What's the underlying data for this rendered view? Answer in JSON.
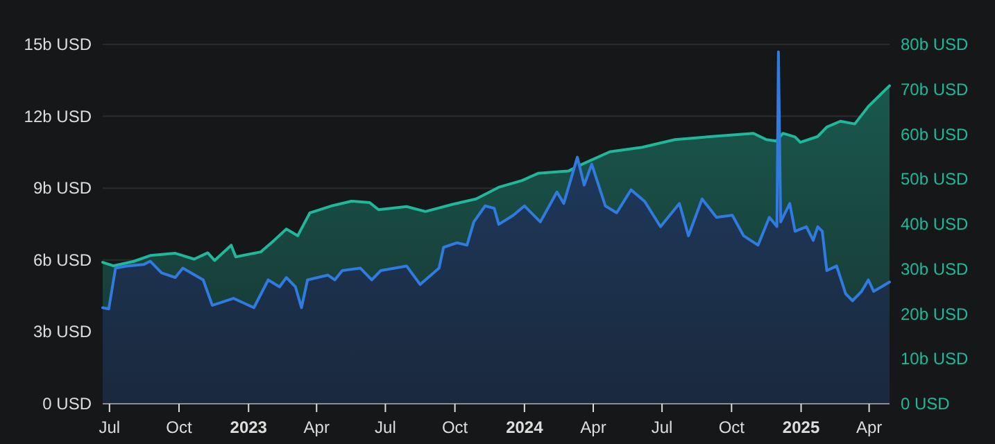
{
  "chart_data": {
    "type": "area",
    "xlim": [
      "2022-06-22",
      "2025-04-28"
    ],
    "xticks": [
      {
        "value": "2022-07-01",
        "label": "Jul"
      },
      {
        "value": "2022-10-01",
        "label": "Oct"
      },
      {
        "value": "2023-01-01",
        "label": "2023"
      },
      {
        "value": "2023-04-01",
        "label": "Apr"
      },
      {
        "value": "2023-07-01",
        "label": "Jul"
      },
      {
        "value": "2023-10-01",
        "label": "Oct"
      },
      {
        "value": "2024-01-01",
        "label": "2024"
      },
      {
        "value": "2024-04-01",
        "label": "Apr"
      },
      {
        "value": "2024-07-01",
        "label": "Jul"
      },
      {
        "value": "2024-10-01",
        "label": "Oct"
      },
      {
        "value": "2025-01-01",
        "label": "2025"
      },
      {
        "value": "2025-04-01",
        "label": "Apr"
      }
    ],
    "ylim": [
      0,
      15
    ],
    "yticks": [
      {
        "value": 0,
        "label": "0 USD"
      },
      {
        "value": 3,
        "label": "3b USD"
      },
      {
        "value": 6,
        "label": "6b USD"
      },
      {
        "value": 9,
        "label": "9b USD"
      },
      {
        "value": 12,
        "label": "12b USD"
      },
      {
        "value": 15,
        "label": "15b USD"
      }
    ],
    "y2lim": [
      0,
      80
    ],
    "y2ticks": [
      {
        "value": 0,
        "label": "0 USD"
      },
      {
        "value": 10,
        "label": "10b USD"
      },
      {
        "value": 20,
        "label": "20b USD"
      },
      {
        "value": 30,
        "label": "30b USD"
      },
      {
        "value": 40,
        "label": "40b USD"
      },
      {
        "value": 50,
        "label": "50b USD"
      },
      {
        "value": 60,
        "label": "60b USD"
      },
      {
        "value": 70,
        "label": "70b USD"
      },
      {
        "value": 80,
        "label": "80b USD"
      }
    ],
    "grid": "y",
    "series": [
      {
        "color": "#1fb89a",
        "axis": "y2",
        "x": [
          "2022-06-22",
          "2022-07-06",
          "2022-08-02",
          "2022-08-24",
          "2022-09-26",
          "2022-10-21",
          "2022-11-08",
          "2022-11-17",
          "2022-12-09",
          "2022-12-15",
          "2023-01-17",
          "2023-02-02",
          "2023-02-20",
          "2023-03-07",
          "2023-03-23",
          "2023-04-22",
          "2023-05-17",
          "2023-06-10",
          "2023-06-22",
          "2023-07-29",
          "2023-08-23",
          "2023-09-28",
          "2023-10-29",
          "2023-11-28",
          "2023-12-29",
          "2024-01-19",
          "2024-02-28",
          "2024-03-17",
          "2024-04-23",
          "2024-06-05",
          "2024-07-18",
          "2024-09-05",
          "2024-10-30",
          "2024-11-16",
          "2024-11-29",
          "2024-12-08",
          "2024-12-24",
          "2024-12-31",
          "2025-01-23",
          "2025-02-04",
          "2025-02-22",
          "2025-03-13",
          "2025-03-31",
          "2025-04-28"
        ],
        "values": [
          31.5,
          30.7,
          31.7,
          33.0,
          33.5,
          32.2,
          33.6,
          31.9,
          35.3,
          32.7,
          33.8,
          36.1,
          38.9,
          37.4,
          42.5,
          44.1,
          45.1,
          44.8,
          43.2,
          43.9,
          42.8,
          44.4,
          45.6,
          48.2,
          49.7,
          51.3,
          51.8,
          53.3,
          56.1,
          57.1,
          58.8,
          59.5,
          60.2,
          58.8,
          58.5,
          60.2,
          59.4,
          58.2,
          59.5,
          61.6,
          62.9,
          62.3,
          66.2,
          70.8
        ]
      },
      {
        "color": "#2f7be0",
        "axis": "y",
        "x": [
          "2022-06-22",
          "2022-06-30",
          "2022-07-09",
          "2022-07-24",
          "2022-08-15",
          "2022-08-24",
          "2022-09-08",
          "2022-09-26",
          "2022-10-06",
          "2022-11-02",
          "2022-11-14",
          "2022-12-12",
          "2023-01-08",
          "2023-01-27",
          "2023-02-11",
          "2023-02-20",
          "2023-03-04",
          "2023-03-12",
          "2023-03-20",
          "2023-04-16",
          "2023-04-25",
          "2023-05-05",
          "2023-05-29",
          "2023-06-13",
          "2023-06-25",
          "2023-07-29",
          "2023-08-16",
          "2023-09-10",
          "2023-09-16",
          "2023-10-04",
          "2023-10-17",
          "2023-10-26",
          "2023-11-10",
          "2023-11-22",
          "2023-11-28",
          "2023-12-17",
          "2024-01-01",
          "2024-01-22",
          "2024-02-13",
          "2024-02-22",
          "2024-03-11",
          "2024-03-20",
          "2024-03-30",
          "2024-04-17",
          "2024-05-02",
          "2024-05-21",
          "2024-06-08",
          "2024-06-29",
          "2024-07-24",
          "2024-08-05",
          "2024-08-23",
          "2024-09-11",
          "2024-10-02",
          "2024-10-17",
          "2024-11-05",
          "2024-11-20",
          "2024-11-30",
          "2024-12-02",
          "2024-12-05",
          "2024-12-17",
          "2024-12-24",
          "2025-01-08",
          "2025-01-17",
          "2025-01-23",
          "2025-01-29",
          "2025-02-04",
          "2025-02-17",
          "2025-03-01",
          "2025-03-10",
          "2025-03-22",
          "2025-03-31",
          "2025-04-07",
          "2025-04-28"
        ],
        "values": [
          4.01,
          3.96,
          5.66,
          5.75,
          5.81,
          5.95,
          5.46,
          5.27,
          5.66,
          5.17,
          4.11,
          4.4,
          4.01,
          5.17,
          4.88,
          5.27,
          4.88,
          4.01,
          5.17,
          5.37,
          5.17,
          5.56,
          5.66,
          5.17,
          5.56,
          5.75,
          4.98,
          5.66,
          6.53,
          6.72,
          6.62,
          7.59,
          8.26,
          8.16,
          7.49,
          7.86,
          8.26,
          7.59,
          8.84,
          8.36,
          10.29,
          9.13,
          10.0,
          8.26,
          7.97,
          8.93,
          8.45,
          7.39,
          8.36,
          7.01,
          8.55,
          7.78,
          7.87,
          7.01,
          6.62,
          7.78,
          7.4,
          14.69,
          7.59,
          8.36,
          7.2,
          7.39,
          6.82,
          7.39,
          7.2,
          5.56,
          5.75,
          4.59,
          4.3,
          4.69,
          5.17,
          4.69,
          5.08
        ]
      }
    ]
  }
}
